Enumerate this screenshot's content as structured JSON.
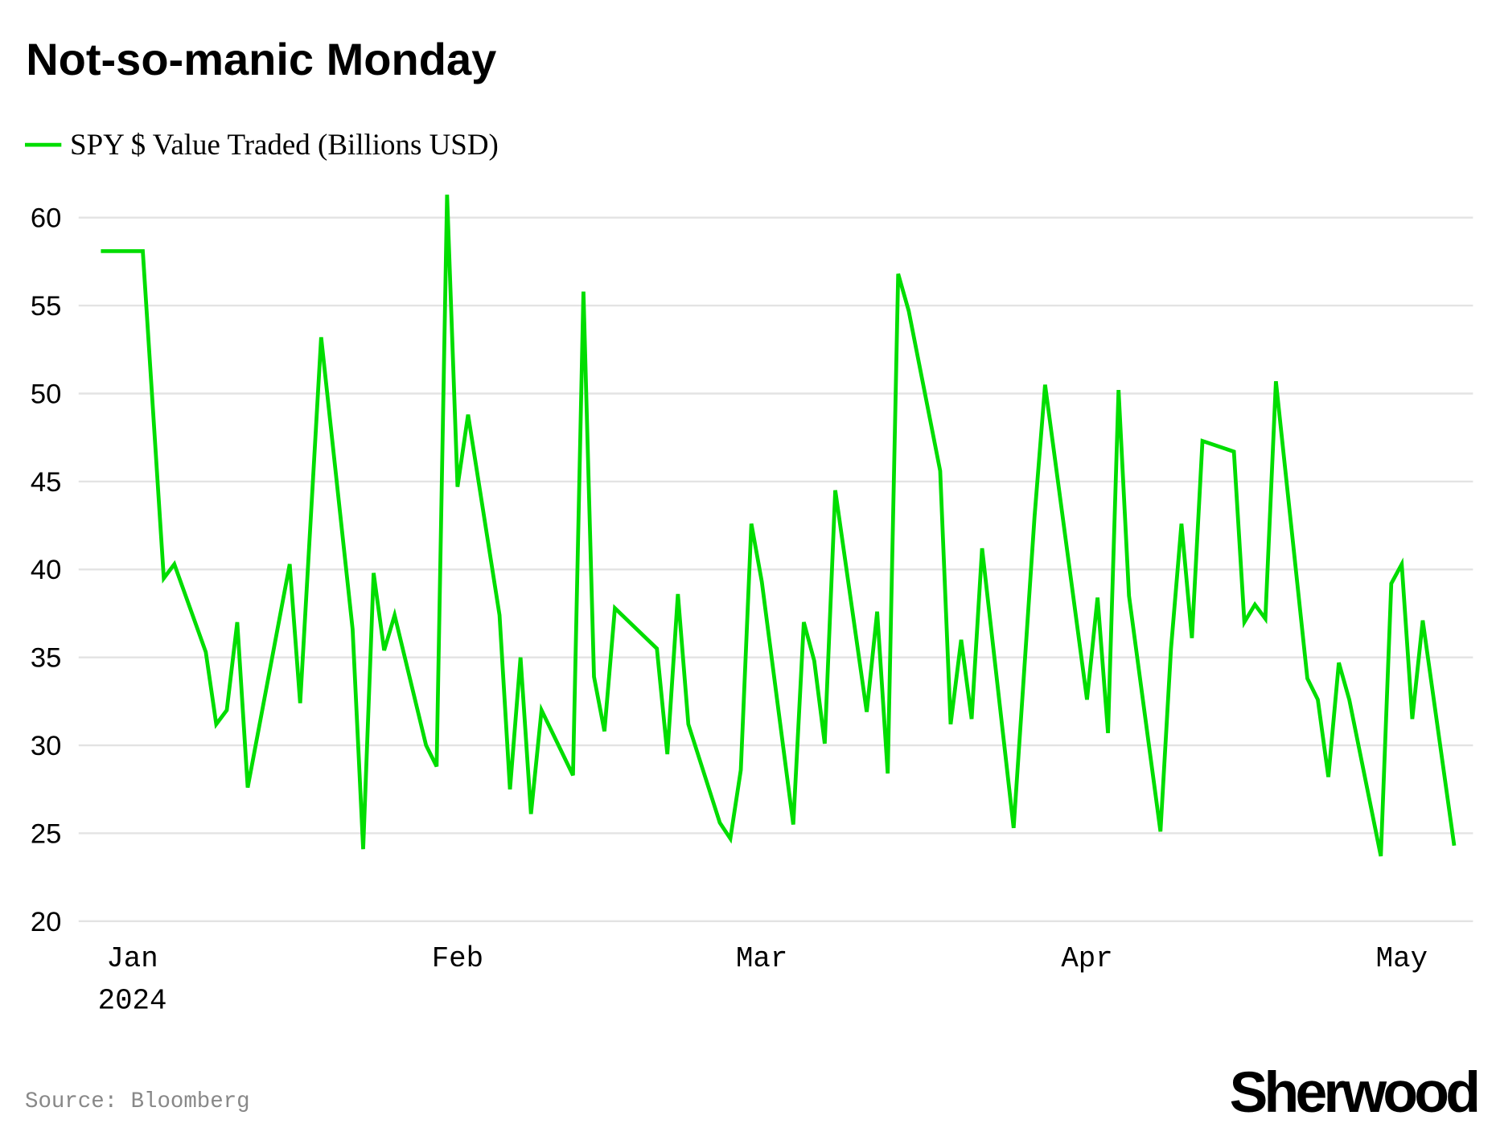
{
  "chart_data": {
    "type": "line",
    "title": "Not-so-manic Monday",
    "xlabel": "",
    "ylabel": "",
    "ylim": [
      20,
      62
    ],
    "yticks": [
      "20",
      "25",
      "30",
      "35",
      "40",
      "45",
      "50",
      "55",
      "60"
    ],
    "xticks": [
      {
        "date": "2024-01-01",
        "label": "Jan",
        "sublabel": "2024"
      },
      {
        "date": "2024-02-01",
        "label": "Feb",
        "sublabel": ""
      },
      {
        "date": "2024-03-01",
        "label": "Mar",
        "sublabel": ""
      },
      {
        "date": "2024-04-01",
        "label": "Apr",
        "sublabel": ""
      },
      {
        "date": "2024-05-01",
        "label": "May",
        "sublabel": ""
      }
    ],
    "grid": true,
    "legend_position": "top-left",
    "series": [
      {
        "name": "SPY $ Value Traded (Billions USD)",
        "color": "#00dd00",
        "points": [
          [
            "2023-12-29",
            58.1
          ],
          [
            "2024-01-02",
            58.1
          ],
          [
            "2024-01-04",
            39.5
          ],
          [
            "2024-01-05",
            40.3
          ],
          [
            "2024-01-08",
            35.3
          ],
          [
            "2024-01-09",
            31.2
          ],
          [
            "2024-01-10",
            32.0
          ],
          [
            "2024-01-11",
            37.0
          ],
          [
            "2024-01-12",
            27.6
          ],
          [
            "2024-01-16",
            40.3
          ],
          [
            "2024-01-17",
            32.4
          ],
          [
            "2024-01-19",
            53.2
          ],
          [
            "2024-01-22",
            36.6
          ],
          [
            "2024-01-23",
            24.1
          ],
          [
            "2024-01-24",
            39.8
          ],
          [
            "2024-01-25",
            35.4
          ],
          [
            "2024-01-26",
            37.4
          ],
          [
            "2024-01-29",
            30.0
          ],
          [
            "2024-01-30",
            28.8
          ],
          [
            "2024-01-31",
            61.3
          ],
          [
            "2024-02-01",
            44.7
          ],
          [
            "2024-02-02",
            48.8
          ],
          [
            "2024-02-05",
            37.4
          ],
          [
            "2024-02-06",
            27.5
          ],
          [
            "2024-02-07",
            35.0
          ],
          [
            "2024-02-08",
            26.1
          ],
          [
            "2024-02-09",
            32.0
          ],
          [
            "2024-02-12",
            28.3
          ],
          [
            "2024-02-13",
            55.8
          ],
          [
            "2024-02-14",
            33.9
          ],
          [
            "2024-02-15",
            30.8
          ],
          [
            "2024-02-16",
            37.8
          ],
          [
            "2024-02-20",
            35.5
          ],
          [
            "2024-02-21",
            29.5
          ],
          [
            "2024-02-22",
            38.6
          ],
          [
            "2024-02-23",
            31.2
          ],
          [
            "2024-02-26",
            25.6
          ],
          [
            "2024-02-27",
            24.7
          ],
          [
            "2024-02-28",
            28.6
          ],
          [
            "2024-02-29",
            42.6
          ],
          [
            "2024-03-01",
            39.3
          ],
          [
            "2024-03-04",
            25.5
          ],
          [
            "2024-03-05",
            37.0
          ],
          [
            "2024-03-06",
            34.8
          ],
          [
            "2024-03-07",
            30.1
          ],
          [
            "2024-03-08",
            44.5
          ],
          [
            "2024-03-11",
            31.9
          ],
          [
            "2024-03-12",
            37.6
          ],
          [
            "2024-03-13",
            28.4
          ],
          [
            "2024-03-14",
            56.8
          ],
          [
            "2024-03-15",
            54.7
          ],
          [
            "2024-03-18",
            45.6
          ],
          [
            "2024-03-19",
            31.2
          ],
          [
            "2024-03-20",
            36.0
          ],
          [
            "2024-03-21",
            31.5
          ],
          [
            "2024-03-22",
            41.2
          ],
          [
            "2024-03-25",
            25.3
          ],
          [
            "2024-03-27",
            43.0
          ],
          [
            "2024-03-28",
            50.5
          ],
          [
            "2024-04-01",
            32.6
          ],
          [
            "2024-04-02",
            38.4
          ],
          [
            "2024-04-03",
            30.7
          ],
          [
            "2024-04-04",
            50.2
          ],
          [
            "2024-04-05",
            38.5
          ],
          [
            "2024-04-08",
            25.1
          ],
          [
            "2024-04-09",
            35.5
          ],
          [
            "2024-04-10",
            42.6
          ],
          [
            "2024-04-11",
            36.1
          ],
          [
            "2024-04-12",
            47.3
          ],
          [
            "2024-04-15",
            46.7
          ],
          [
            "2024-04-16",
            37.0
          ],
          [
            "2024-04-17",
            38.0
          ],
          [
            "2024-04-18",
            37.2
          ],
          [
            "2024-04-19",
            50.7
          ],
          [
            "2024-04-22",
            33.8
          ],
          [
            "2024-04-23",
            32.6
          ],
          [
            "2024-04-24",
            28.2
          ],
          [
            "2024-04-25",
            34.7
          ],
          [
            "2024-04-26",
            32.6
          ],
          [
            "2024-04-29",
            23.7
          ],
          [
            "2024-04-30",
            39.2
          ],
          [
            "2024-05-01",
            40.3
          ],
          [
            "2024-05-02",
            31.5
          ],
          [
            "2024-05-03",
            37.1
          ],
          [
            "2024-05-06",
            24.3
          ]
        ]
      }
    ]
  },
  "footer": {
    "source": "Source: Bloomberg",
    "logo": "Sherwood"
  }
}
